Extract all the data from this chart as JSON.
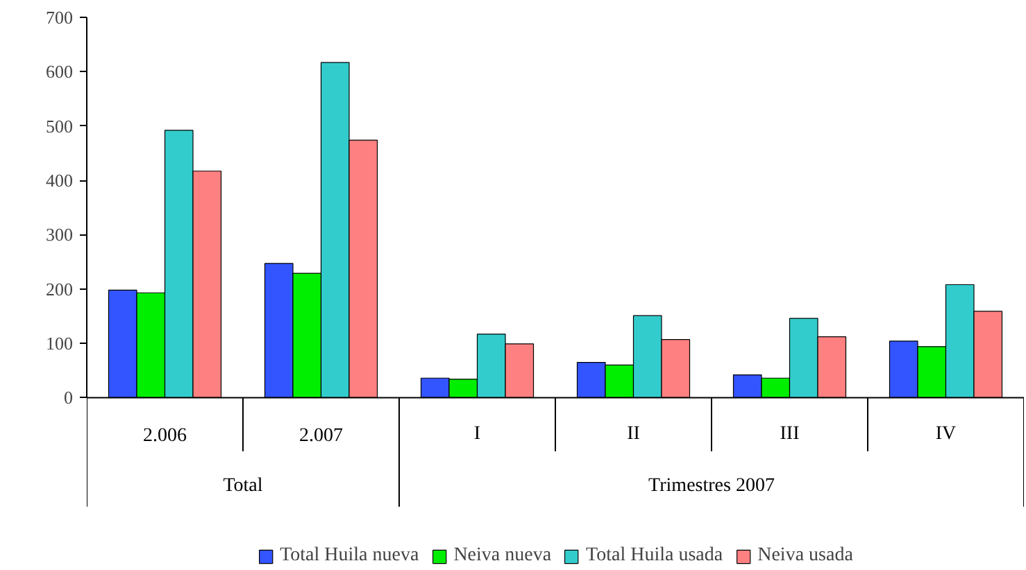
{
  "chart_data": {
    "type": "bar",
    "categories": [
      "2.006",
      "2.007",
      "I",
      "II",
      "III",
      "IV"
    ],
    "annotations": [
      "Total",
      "Trimestres 2007"
    ],
    "series": [
      {
        "name": "Total Huila nueva",
        "color": "#3355ff",
        "values": [
          198,
          247,
          36,
          65,
          42,
          104
        ]
      },
      {
        "name": "Neiva nueva",
        "color": "#00ee00",
        "values": [
          193,
          229,
          34,
          60,
          36,
          94
        ]
      },
      {
        "name": "Total Huila usada",
        "color": "#33cccc",
        "values": [
          492,
          617,
          117,
          151,
          146,
          208
        ]
      },
      {
        "name": "Neiva usada",
        "color": "#ff8080",
        "values": [
          417,
          474,
          99,
          107,
          112,
          159
        ]
      }
    ],
    "ylim": [
      0,
      700
    ],
    "yticks": [
      0,
      100,
      200,
      300,
      400,
      500,
      600,
      700
    ],
    "grid": false,
    "legend": "bottom"
  }
}
